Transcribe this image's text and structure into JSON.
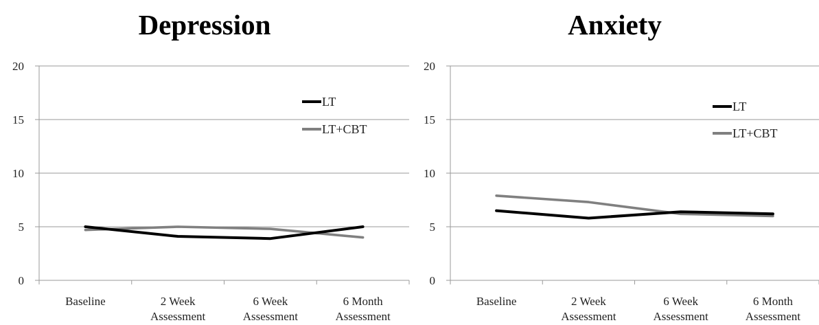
{
  "chart_data": [
    {
      "type": "line",
      "title": "Depression",
      "categories": [
        [
          "Baseline"
        ],
        [
          "2 Week",
          "Assessment"
        ],
        [
          "6 Week",
          "Assessment"
        ],
        [
          "6 Month",
          "Assessment"
        ]
      ],
      "yticks": [
        0,
        5,
        10,
        15,
        20
      ],
      "ylim": [
        0,
        20
      ],
      "grid": true,
      "legend_placement": "top-right",
      "series": [
        {
          "name": "LT",
          "color": "#000000",
          "values": [
            5.0,
            4.1,
            3.9,
            5.0
          ]
        },
        {
          "name": "LT+CBT",
          "color": "#808080",
          "values": [
            4.7,
            5.0,
            4.8,
            4.0
          ]
        }
      ]
    },
    {
      "type": "line",
      "title": "Anxiety",
      "categories": [
        [
          "Baseline"
        ],
        [
          "2 Week",
          "Assessment"
        ],
        [
          "6 Week",
          "Assessment"
        ],
        [
          "6 Month",
          "Assessment"
        ]
      ],
      "yticks": [
        0,
        5,
        10,
        15,
        20
      ],
      "ylim": [
        0,
        20
      ],
      "grid": true,
      "legend_placement": "top-right",
      "series": [
        {
          "name": "LT",
          "color": "#000000",
          "values": [
            6.5,
            5.8,
            6.4,
            6.2
          ]
        },
        {
          "name": "LT+CBT",
          "color": "#808080",
          "values": [
            7.9,
            7.3,
            6.2,
            6.0
          ]
        }
      ]
    }
  ]
}
